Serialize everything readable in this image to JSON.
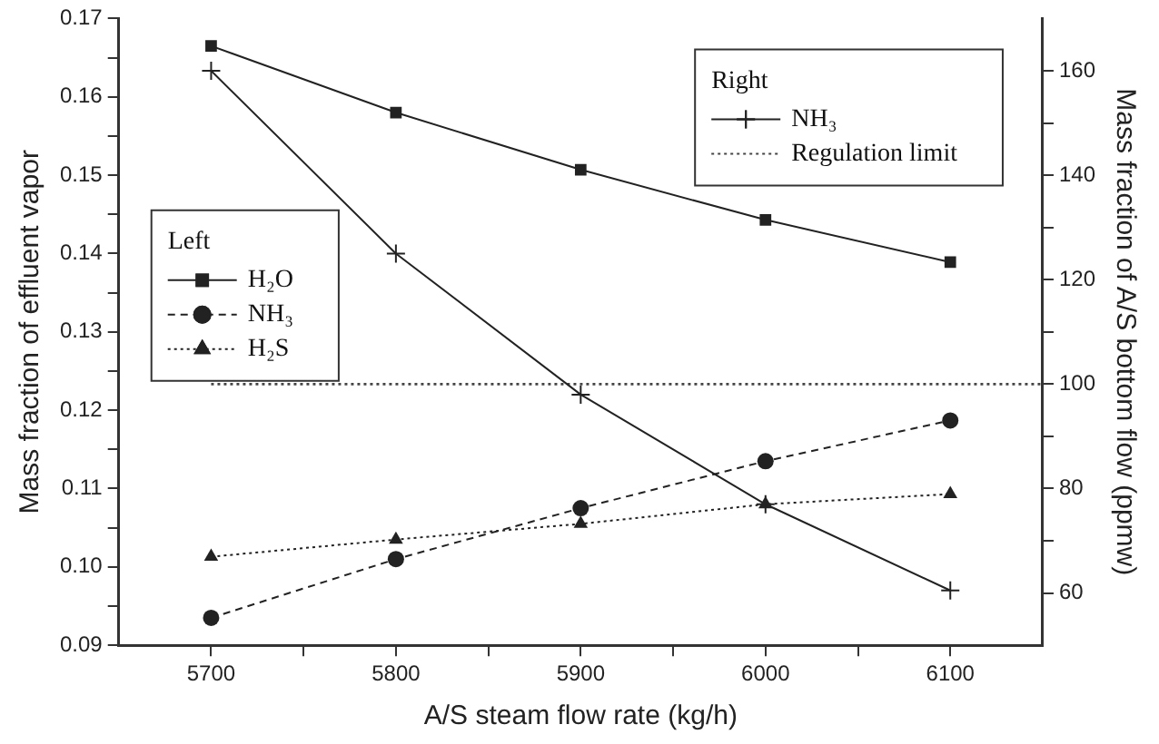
{
  "chart_data": {
    "type": "line",
    "xlabel": "A/S steam flow rate (kg/h)",
    "ylabel": "Mass fraction of effluent vapor",
    "y2label": "Mass fraction of A/S bottom flow (ppmw)",
    "x": [
      5700,
      5800,
      5900,
      6000,
      6100
    ],
    "xlim": [
      5650,
      6150
    ],
    "xticks": [
      5700,
      {
        "value": 5750,
        "label": null
      },
      5800,
      {
        "value": 5850,
        "label": null
      },
      5900,
      {
        "value": 5950,
        "label": null
      },
      6000,
      {
        "value": 6050,
        "label": null
      },
      6100
    ],
    "ylim": [
      0.09,
      0.17
    ],
    "yticks": [
      0.09,
      {
        "value": 0.095,
        "label": null
      },
      {
        "value": 0.1,
        "label": "0.10"
      },
      {
        "value": 0.105,
        "label": null
      },
      0.11,
      {
        "value": 0.115,
        "label": null
      },
      0.12,
      {
        "value": 0.125,
        "label": null
      },
      0.13,
      {
        "value": 0.135,
        "label": null
      },
      0.14,
      {
        "value": 0.145,
        "label": null
      },
      0.15,
      {
        "value": 0.155,
        "label": null
      },
      0.16,
      {
        "value": 0.165,
        "label": null
      },
      0.17
    ],
    "y2lim": [
      50,
      170
    ],
    "y2ticks": [
      60,
      {
        "value": 70,
        "label": null
      },
      80,
      {
        "value": 90,
        "label": null
      },
      100,
      {
        "value": 110,
        "label": null
      },
      120,
      {
        "value": 130,
        "label": null
      },
      140,
      {
        "value": 150,
        "label": null
      },
      160
    ],
    "grid": false,
    "legend": [
      "center left",
      "top right"
    ],
    "legend_title": [
      "Left",
      "Right"
    ],
    "series": [
      {
        "name": "H₂O",
        "color": "#222222",
        "values": [
          0.1665,
          0.158,
          0.1507,
          0.1443,
          0.1389
        ],
        "marker": "square",
        "line_style": "solid",
        "axis": "y"
      },
      {
        "name": "NH₃",
        "color": "#222222",
        "values": [
          0.0935,
          0.101,
          0.1075,
          0.1135,
          0.1187
        ],
        "marker": "circle",
        "line_style": "dashed",
        "axis": "y"
      },
      {
        "name": "H₂S",
        "color": "#222222",
        "values": [
          0.1013,
          0.1035,
          0.1055,
          0.108,
          0.1093
        ],
        "marker": "triangle",
        "line_style": "dotted",
        "axis": "y"
      },
      {
        "name": "NH₃",
        "color": "#222222",
        "values": [
          160,
          125,
          98,
          77,
          60.5
        ],
        "marker": "cross",
        "line_style": "solid",
        "axis": "y2"
      },
      {
        "name": "Regulation limit",
        "color": "#444444",
        "x": [
          5700,
          6150
        ],
        "values": [
          100,
          100
        ],
        "marker": "none",
        "line_style": "dotted",
        "axis": "y2"
      }
    ]
  }
}
